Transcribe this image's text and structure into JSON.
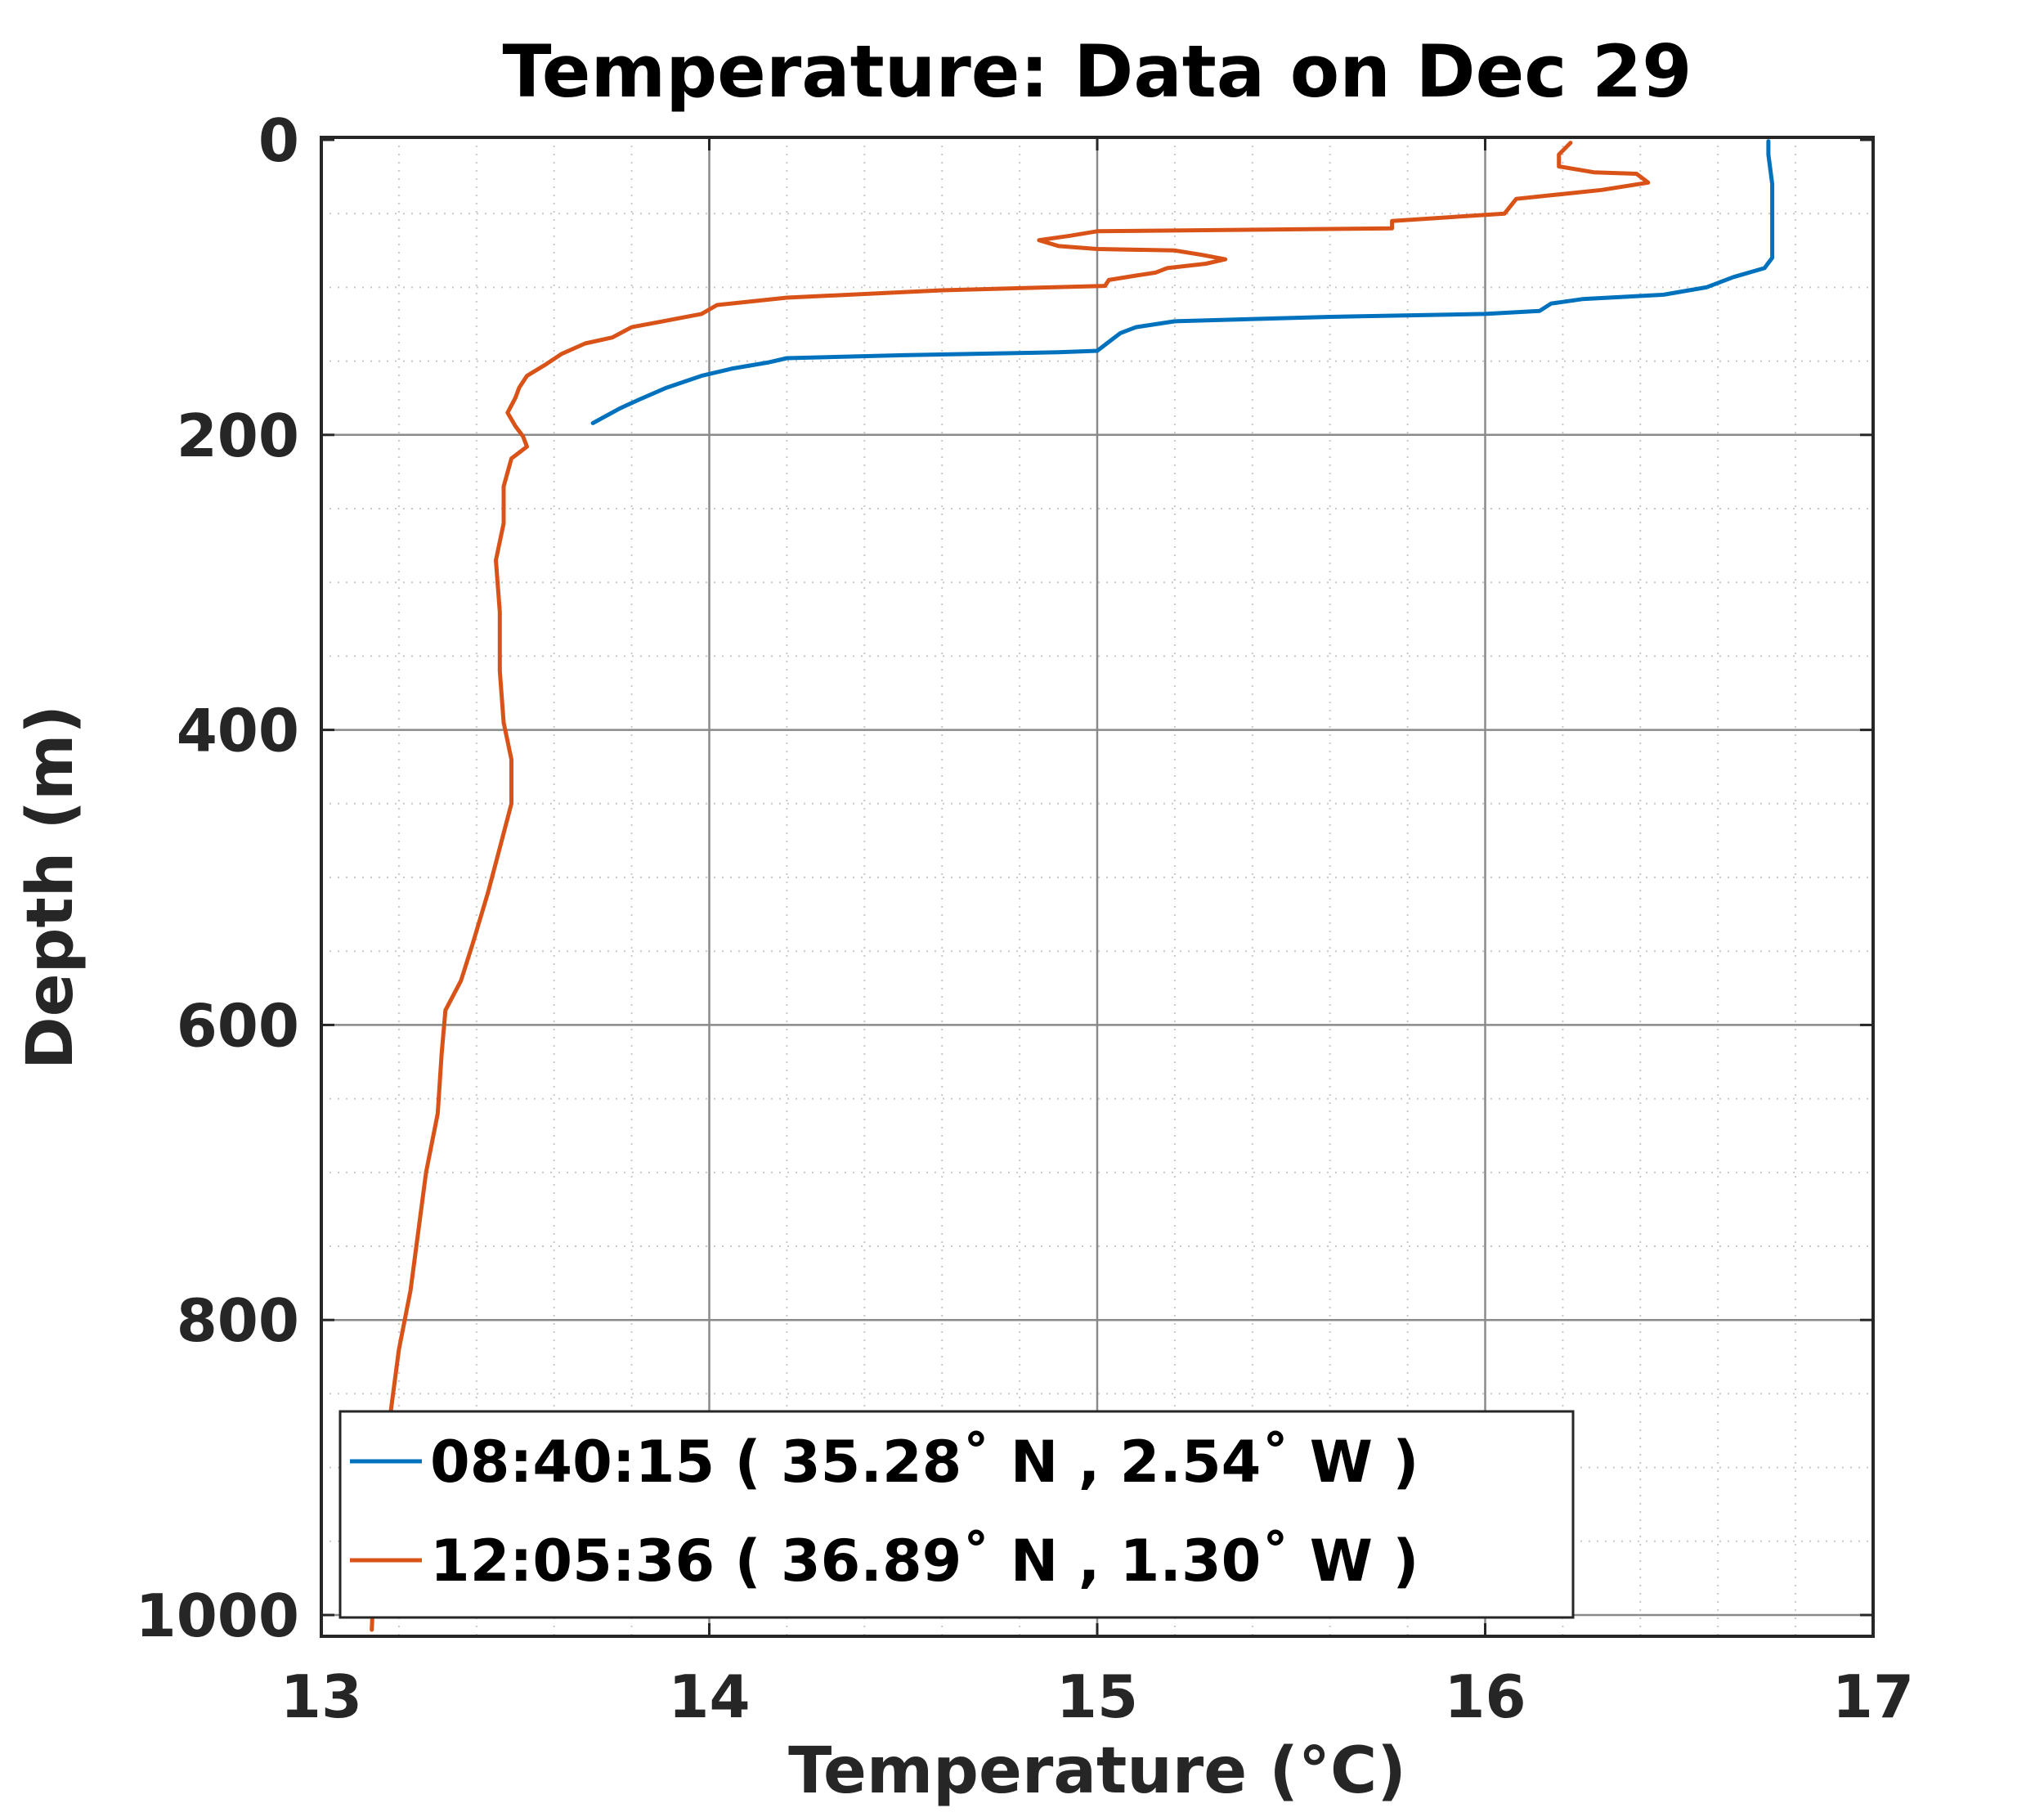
{
  "chart_data": {
    "type": "line",
    "title": "Temperature: Data on Dec 29",
    "xlabel": "Temperature (°C)",
    "ylabel": "Depth (m)",
    "xlim": [
      13,
      17
    ],
    "ylim": [
      0,
      1000
    ],
    "y_reversed": true,
    "xticks": [
      "13",
      "14",
      "15",
      "16",
      "17"
    ],
    "yticks": [
      "0",
      "200",
      "400",
      "600",
      "800",
      "1000"
    ],
    "grid": "major solid, minor dotted",
    "legend_position": "bottom-left",
    "series": [
      {
        "name": "08:40:15 ( 35.28˚ N , 2.54˚ W )",
        "color": "#0072BD",
        "points": [
          [
            16.73,
            1
          ],
          [
            16.73,
            10
          ],
          [
            16.74,
            30
          ],
          [
            16.74,
            50
          ],
          [
            16.74,
            70
          ],
          [
            16.74,
            80
          ],
          [
            16.72,
            87
          ],
          [
            16.64,
            93
          ],
          [
            16.57,
            100
          ],
          [
            16.46,
            105
          ],
          [
            16.25,
            108
          ],
          [
            16.17,
            111
          ],
          [
            16.14,
            116
          ],
          [
            16.0,
            118
          ],
          [
            15.6,
            120
          ],
          [
            15.2,
            123
          ],
          [
            15.1,
            127
          ],
          [
            15.06,
            131
          ],
          [
            15.03,
            137
          ],
          [
            15.0,
            143
          ],
          [
            14.9,
            144
          ],
          [
            14.5,
            146
          ],
          [
            14.2,
            148
          ],
          [
            14.15,
            151
          ],
          [
            14.06,
            155
          ],
          [
            13.98,
            160
          ],
          [
            13.89,
            168
          ],
          [
            13.82,
            176
          ],
          [
            13.77,
            182
          ],
          [
            13.7,
            192
          ]
        ]
      },
      {
        "name": "12:05:36 ( 36.89˚ N , 1.30˚ W )",
        "color": "#D95319",
        "points": [
          [
            16.22,
            2
          ],
          [
            16.19,
            10
          ],
          [
            16.19,
            18
          ],
          [
            16.28,
            22
          ],
          [
            16.39,
            23
          ],
          [
            16.42,
            29
          ],
          [
            16.3,
            34
          ],
          [
            16.08,
            40
          ],
          [
            16.05,
            50
          ],
          [
            15.76,
            55
          ],
          [
            15.76,
            60
          ],
          [
            15.0,
            62
          ],
          [
            14.93,
            65
          ],
          [
            14.85,
            68
          ],
          [
            14.9,
            72
          ],
          [
            15.0,
            74
          ],
          [
            15.2,
            75
          ],
          [
            15.27,
            78
          ],
          [
            15.33,
            81
          ],
          [
            15.28,
            84
          ],
          [
            15.18,
            87
          ],
          [
            15.15,
            90
          ],
          [
            15.1,
            92
          ],
          [
            15.03,
            95
          ],
          [
            15.02,
            99
          ],
          [
            14.6,
            102
          ],
          [
            14.2,
            107
          ],
          [
            14.02,
            112
          ],
          [
            13.98,
            118
          ],
          [
            13.88,
            123
          ],
          [
            13.8,
            127
          ],
          [
            13.75,
            134
          ],
          [
            13.68,
            138
          ],
          [
            13.62,
            145
          ],
          [
            13.58,
            152
          ],
          [
            13.53,
            160
          ],
          [
            13.51,
            168
          ],
          [
            13.5,
            175
          ],
          [
            13.48,
            185
          ],
          [
            13.5,
            194
          ],
          [
            13.52,
            201
          ],
          [
            13.53,
            208
          ],
          [
            13.49,
            216
          ],
          [
            13.47,
            235
          ],
          [
            13.47,
            260
          ],
          [
            13.45,
            285
          ],
          [
            13.46,
            320
          ],
          [
            13.46,
            360
          ],
          [
            13.47,
            395
          ],
          [
            13.49,
            420
          ],
          [
            13.49,
            450
          ],
          [
            13.46,
            480
          ],
          [
            13.43,
            510
          ],
          [
            13.39,
            545
          ],
          [
            13.36,
            570
          ],
          [
            13.32,
            590
          ],
          [
            13.31,
            620
          ],
          [
            13.3,
            660
          ],
          [
            13.27,
            700
          ],
          [
            13.25,
            740
          ],
          [
            13.23,
            780
          ],
          [
            13.2,
            820
          ],
          [
            13.18,
            860
          ],
          [
            13.16,
            900
          ],
          [
            13.14,
            950
          ],
          [
            13.13,
            1010
          ]
        ]
      }
    ]
  }
}
